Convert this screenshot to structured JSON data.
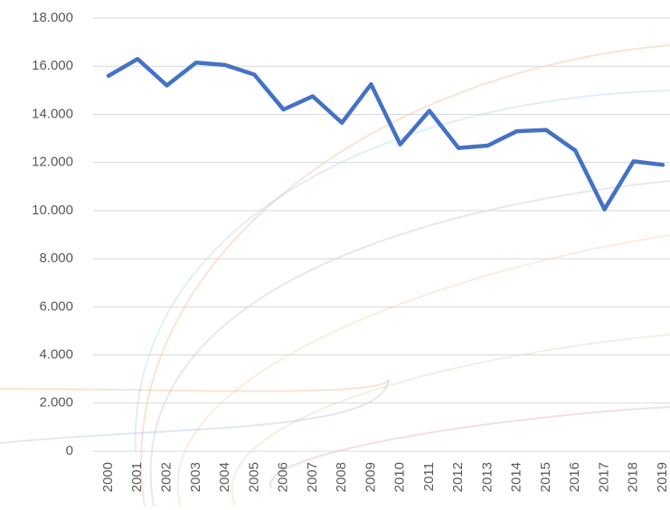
{
  "chart_data": {
    "type": "line",
    "categories": [
      "2000",
      "2001",
      "2002",
      "2003",
      "2004",
      "2005",
      "2006",
      "2007",
      "2008",
      "2009",
      "2010",
      "2011",
      "2012",
      "2013",
      "2014",
      "2015",
      "2016",
      "2017",
      "2018",
      "2019"
    ],
    "series": [
      {
        "color": "#4472c4",
        "values": [
          15600,
          16300,
          15200,
          16150,
          16050,
          15650,
          14200,
          14750,
          13650,
          15250,
          12750,
          14150,
          12600,
          12700,
          13300,
          13350,
          12500,
          10050,
          12050,
          11900
        ]
      }
    ],
    "ylim": [
      0,
      18000
    ],
    "yticks": [
      0,
      {
        "value": 2000,
        "label": "2.000"
      },
      {
        "value": 4000,
        "label": "4.000"
      },
      {
        "value": 6000,
        "label": "6.000"
      },
      {
        "value": 8000,
        "label": "8.000"
      },
      {
        "value": 10000,
        "label": "10.000"
      },
      {
        "value": 12000,
        "label": "12.000"
      },
      {
        "value": 14000,
        "label": "14.000"
      },
      {
        "value": 16000,
        "label": "16.000"
      },
      {
        "value": 18000,
        "label": "18.000"
      }
    ],
    "grid": true
  }
}
